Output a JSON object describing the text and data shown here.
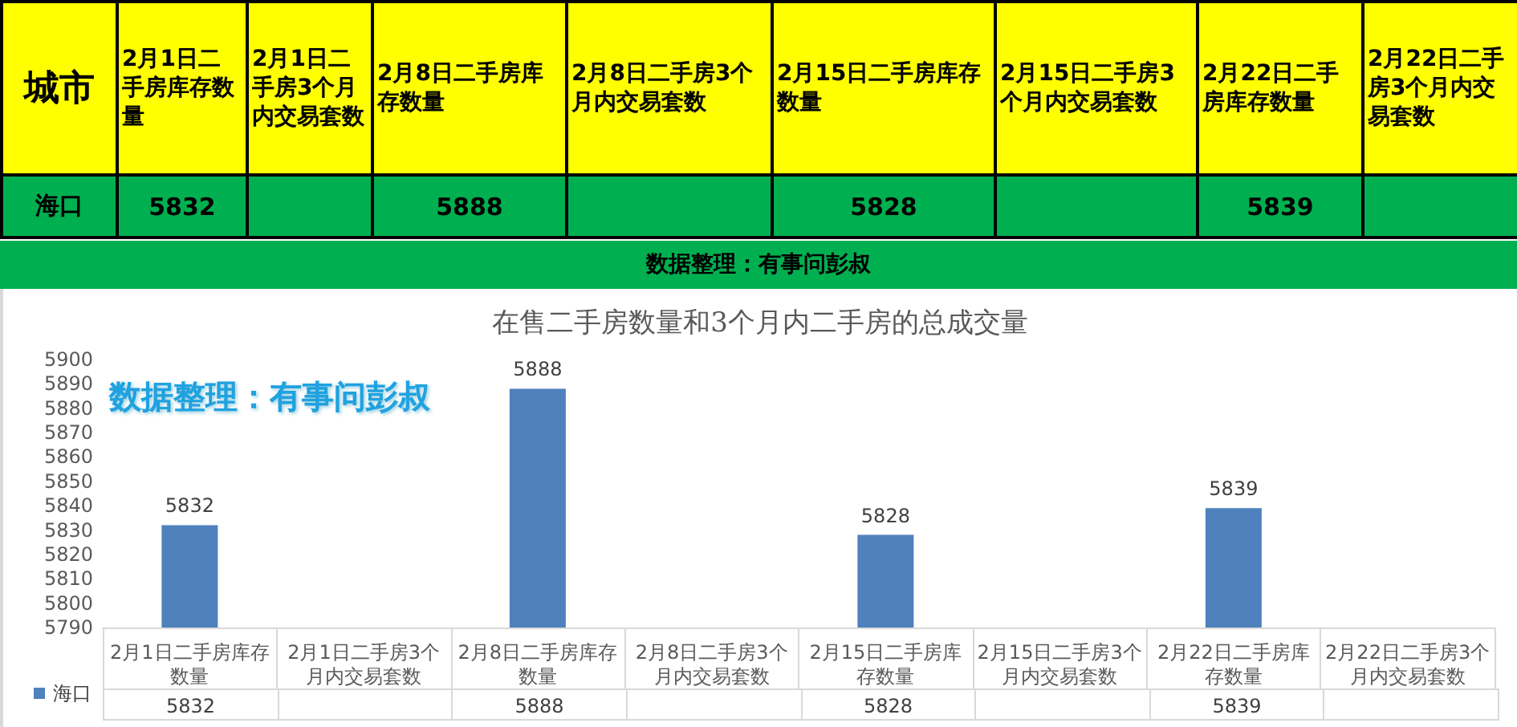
{
  "chart_data": [
    {
      "type": "heatmap",
      "ylabel": "城市",
      "data_labels": true,
      "categories": [
        "2月1日二手房库存数量",
        "2月1日二手房3个月内交易套数",
        "2月8日二手房库存数量",
        "2月8日二手房3个月内交易套数",
        "2月15日二手房库存数量",
        "2月15日二手房3个月内交易套数",
        "2月22日二手房库存数量",
        "2月22日二手房3个月内交易套数"
      ],
      "y_categories": [
        "海口"
      ],
      "cells": [
        [
          5832,
          null,
          5888,
          null,
          5828,
          null,
          5839,
          null
        ]
      ],
      "annotations": [
        "数据整理：有事问彭叔"
      ]
    },
    {
      "type": "bar",
      "title": "在售二手房数量和3个月内二手房的总成交量",
      "categories": [
        "2月1日二手房库存数量",
        "2月1日二手房3个月内交易套数",
        "2月8日二手房库存数量",
        "2月8日二手房3个月内交易套数",
        "2月15日二手房库存数量",
        "2月15日二手房3个月内交易套数",
        "2月22日二手房库存数量",
        "2月22日二手房3个月内交易套数"
      ],
      "series": [
        {
          "name": "海口",
          "color": "#4f81bd",
          "values": [
            5832,
            null,
            5888,
            null,
            5828,
            null,
            5839,
            null
          ],
          "value_labels": [
            "5832",
            null,
            "5888",
            null,
            "5828",
            null,
            "5839",
            null
          ]
        }
      ],
      "ylim": [
        5790,
        5900
      ],
      "yticks": [
        5790,
        5800,
        5810,
        5820,
        5830,
        5840,
        5850,
        5860,
        5870,
        5880,
        5890,
        5900
      ],
      "legend": "bottom left",
      "grid": false,
      "annotations": [
        "数据整理：有事问彭叔",
        "5832",
        "5888",
        "5828",
        "5839"
      ]
    }
  ]
}
